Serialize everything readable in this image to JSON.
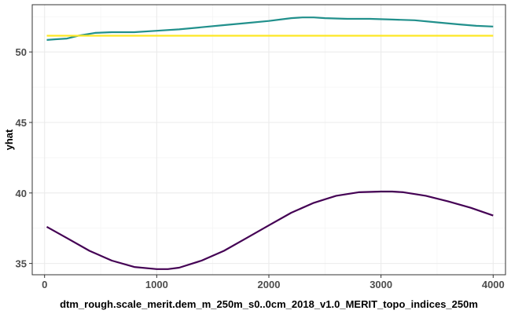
{
  "chart_data": {
    "type": "line",
    "title": "",
    "xlabel": "dtm_rough.scale_merit.dem_m_250m_s0..0cm_2018_v1.0_MERIT_topo_indices_250m",
    "ylabel": "yhat",
    "xlim": [
      -110,
      4110
    ],
    "ylim": [
      34.2,
      53.35
    ],
    "x_ticks": [
      0,
      1000,
      2000,
      3000,
      4000
    ],
    "x_tick_labels": [
      "0",
      "1000",
      "2000",
      "3000",
      "4000"
    ],
    "y_ticks": [
      35,
      40,
      45,
      50
    ],
    "y_tick_labels": [
      "35",
      "40",
      "45",
      "50"
    ],
    "grid": true,
    "legend": "none",
    "series": [
      {
        "color": "#440154",
        "x": [
          20,
          200,
          400,
          600,
          800,
          1000,
          1100,
          1200,
          1400,
          1600,
          1800,
          2000,
          2200,
          2400,
          2600,
          2800,
          3000,
          3100,
          3200,
          3400,
          3600,
          3800,
          4000
        ],
        "y": [
          37.6,
          36.8,
          35.9,
          35.2,
          34.75,
          34.6,
          34.6,
          34.7,
          35.2,
          35.9,
          36.8,
          37.7,
          38.6,
          39.3,
          39.8,
          40.05,
          40.1,
          40.1,
          40.05,
          39.8,
          39.4,
          38.95,
          38.4
        ]
      },
      {
        "color": "#21908c",
        "x": [
          20,
          100,
          200,
          300,
          450,
          600,
          800,
          1000,
          1200,
          1400,
          1600,
          1800,
          2000,
          2100,
          2200,
          2300,
          2400,
          2500,
          2700,
          2900,
          3100,
          3300,
          3500,
          3700,
          3850,
          4000
        ],
        "y": [
          50.85,
          50.9,
          50.95,
          51.15,
          51.35,
          51.4,
          51.4,
          51.5,
          51.6,
          51.75,
          51.9,
          52.05,
          52.2,
          52.3,
          52.4,
          52.45,
          52.45,
          52.4,
          52.35,
          52.35,
          52.3,
          52.25,
          52.1,
          51.95,
          51.85,
          51.8
        ]
      },
      {
        "color": "#fde725",
        "x": [
          20,
          4000
        ],
        "y": [
          51.15,
          51.15
        ]
      }
    ]
  }
}
